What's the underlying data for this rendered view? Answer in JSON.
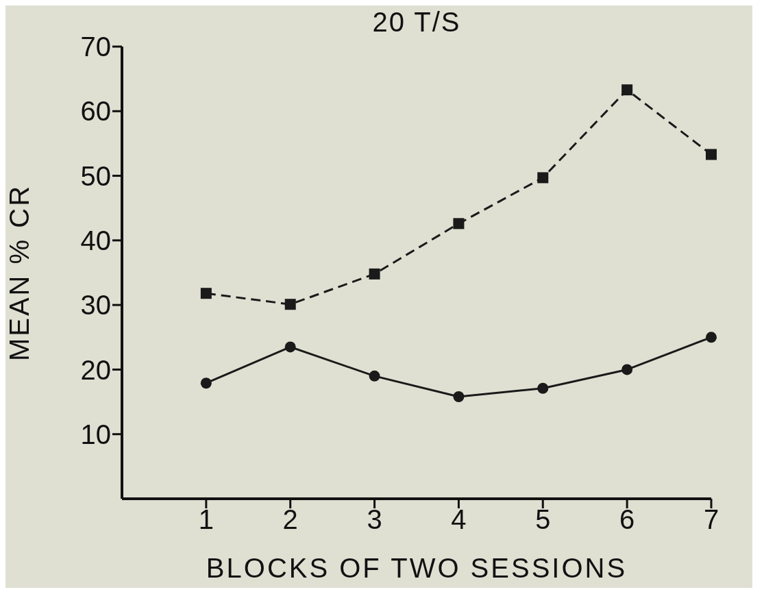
{
  "chart_data": {
    "type": "line",
    "title": "20 T/S",
    "xlabel": "BLOCKS OF TWO SESSIONS",
    "ylabel": "MEAN % CR",
    "x": [
      1,
      2,
      3,
      4,
      5,
      6,
      7
    ],
    "xlim": [
      0,
      7
    ],
    "xticks": [
      1,
      2,
      3,
      4,
      5,
      6,
      7
    ],
    "ylim": [
      0,
      70
    ],
    "yticks": [
      10,
      20,
      30,
      40,
      50,
      60,
      70
    ],
    "grid": false,
    "legend": false,
    "series": [
      {
        "color": "#1a1a1a",
        "marker": "square",
        "line_style": "dashed",
        "values": [
          31.8,
          30.1,
          34.8,
          42.6,
          49.7,
          63.3,
          53.3
        ]
      },
      {
        "color": "#1a1a1a",
        "marker": "circle",
        "line_style": "solid",
        "values": [
          17.9,
          23.5,
          19.0,
          15.8,
          17.1,
          20.0,
          25.0
        ]
      }
    ]
  }
}
